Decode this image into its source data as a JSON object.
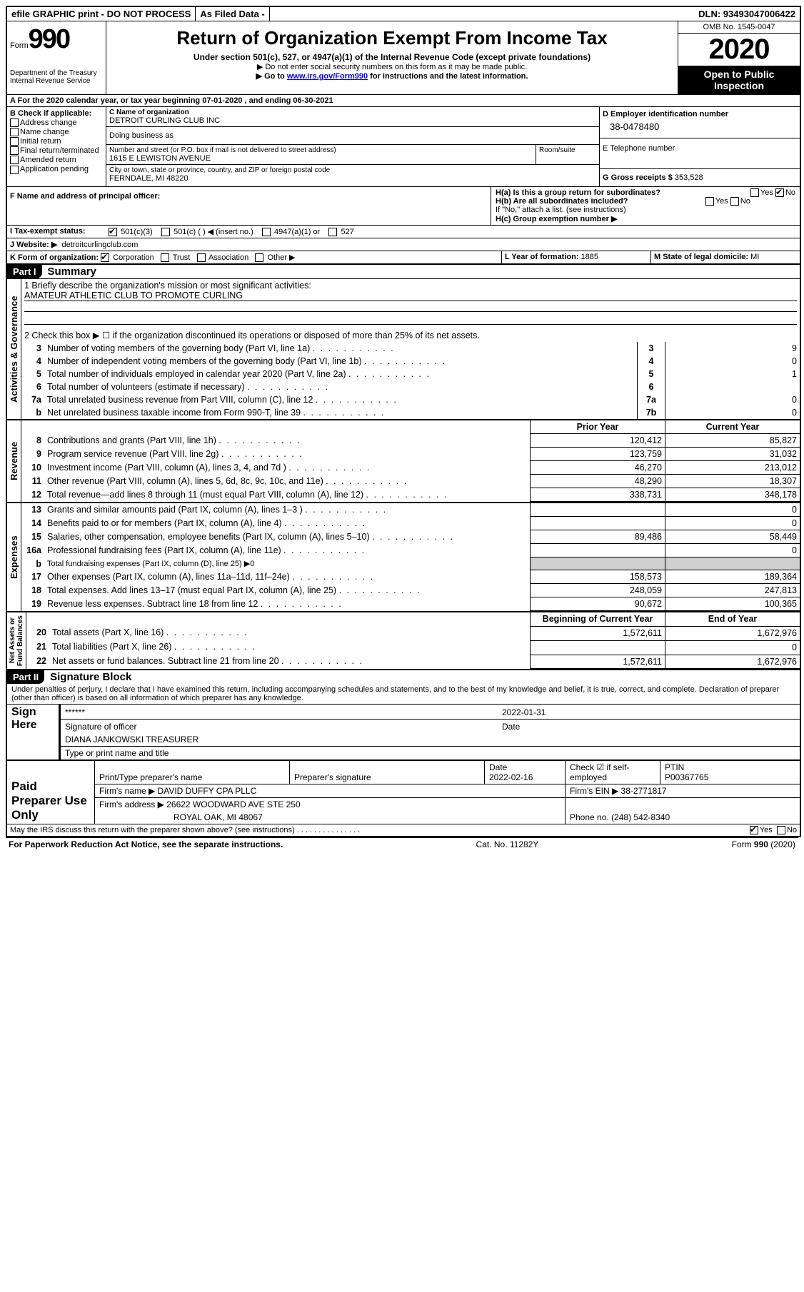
{
  "topbar": {
    "efile": "efile GRAPHIC print - DO NOT PROCESS",
    "asfiled": "As Filed Data -",
    "dln": "DLN: 93493047006422"
  },
  "header": {
    "form_prefix": "Form",
    "form_num": "990",
    "dept": "Department of the Treasury\nInternal Revenue Service",
    "title": "Return of Organization Exempt From Income Tax",
    "sub": "Under section 501(c), 527, or 4947(a)(1) of the Internal Revenue Code (except private foundations)",
    "note1": "▶ Do not enter social security numbers on this form as it may be made public.",
    "note2_pre": "▶ Go to ",
    "note2_link": "www.irs.gov/Form990",
    "note2_post": " for instructions and the latest information.",
    "omb": "OMB No. 1545-0047",
    "year": "2020",
    "open": "Open to Public Inspection"
  },
  "A": {
    "label": "A  For the 2020 calendar year, or tax year beginning ",
    "begin": "07-01-2020",
    "mid": " , and ending ",
    "end": "06-30-2021"
  },
  "B": {
    "label": "B Check if applicable:",
    "items": [
      "Address change",
      "Name change",
      "Initial return",
      "Final return/terminated",
      "Amended return",
      "Application pending"
    ]
  },
  "C": {
    "name_label": "C Name of organization",
    "name": "DETROIT CURLING CLUB INC",
    "dba_label": "Doing business as",
    "street_label": "Number and street (or P.O. box if mail is not delivered to street address)",
    "room_label": "Room/suite",
    "street": "1615 E LEWISTON AVENUE",
    "city_label": "City or town, state or province, country, and ZIP or foreign postal code",
    "city": "FERNDALE, MI  48220"
  },
  "D": {
    "label": "D Employer identification number",
    "value": "38-0478480"
  },
  "E": {
    "label": "E Telephone number"
  },
  "G": {
    "label": "G Gross receipts $ ",
    "value": "353,528"
  },
  "F": {
    "label": "F  Name and address of principal officer:"
  },
  "H": {
    "a": "H(a)  Is this a group return for subordinates?",
    "b": "H(b)  Are all subordinates included?",
    "bnote": "If \"No,\" attach a list. (see instructions)",
    "c": "H(c)  Group exemption number ▶",
    "yes": "Yes",
    "no": "No"
  },
  "I": {
    "label": "I  Tax-exempt status:",
    "opts": [
      "501(c)(3)",
      "501(c) (   ) ◀ (insert no.)",
      "4947(a)(1) or",
      "527"
    ]
  },
  "J": {
    "label": "J  Website: ▶",
    "value": "detroitcurlingclub.com"
  },
  "K": {
    "label": "K Form of organization:",
    "opts": [
      "Corporation",
      "Trust",
      "Association",
      "Other ▶"
    ]
  },
  "L": {
    "label": "L Year of formation: ",
    "value": "1885"
  },
  "M": {
    "label": "M State of legal domicile: ",
    "value": "MI"
  },
  "part1": {
    "tag": "Part I",
    "title": "Summary",
    "q1": "1 Briefly describe the organization's mission or most significant activities:",
    "q1v": "AMATEUR ATHLETIC CLUB TO PROMOTE CURLING",
    "q2": "2  Check this box ▶ ☐ if the organization discontinued its operations or disposed of more than 25% of its net assets.",
    "rows_top": [
      {
        "n": "3",
        "t": "Number of voting members of the governing body (Part VI, line 1a)",
        "ln": "3",
        "v": "9"
      },
      {
        "n": "4",
        "t": "Number of independent voting members of the governing body (Part VI, line 1b)",
        "ln": "4",
        "v": "0"
      },
      {
        "n": "5",
        "t": "Total number of individuals employed in calendar year 2020 (Part V, line 2a)",
        "ln": "5",
        "v": "1"
      },
      {
        "n": "6",
        "t": "Total number of volunteers (estimate if necessary)",
        "ln": "6",
        "v": ""
      },
      {
        "n": "7a",
        "t": "Total unrelated business revenue from Part VIII, column (C), line 12",
        "ln": "7a",
        "v": "0"
      },
      {
        "n": "b",
        "t": "Net unrelated business taxable income from Form 990-T, line 39",
        "ln": "7b",
        "v": "0"
      }
    ],
    "hdr_prior": "Prior Year",
    "hdr_curr": "Current Year",
    "revenue": [
      {
        "n": "8",
        "t": "Contributions and grants (Part VIII, line 1h)",
        "p": "120,412",
        "c": "85,827"
      },
      {
        "n": "9",
        "t": "Program service revenue (Part VIII, line 2g)",
        "p": "123,759",
        "c": "31,032"
      },
      {
        "n": "10",
        "t": "Investment income (Part VIII, column (A), lines 3, 4, and 7d )",
        "p": "46,270",
        "c": "213,012"
      },
      {
        "n": "11",
        "t": "Other revenue (Part VIII, column (A), lines 5, 6d, 8c, 9c, 10c, and 11e)",
        "p": "48,290",
        "c": "18,307"
      },
      {
        "n": "12",
        "t": "Total revenue—add lines 8 through 11 (must equal Part VIII, column (A), line 12)",
        "p": "338,731",
        "c": "348,178"
      }
    ],
    "expenses": [
      {
        "n": "13",
        "t": "Grants and similar amounts paid (Part IX, column (A), lines 1–3 )",
        "p": "",
        "c": "0"
      },
      {
        "n": "14",
        "t": "Benefits paid to or for members (Part IX, column (A), line 4)",
        "p": "",
        "c": "0"
      },
      {
        "n": "15",
        "t": "Salaries, other compensation, employee benefits (Part IX, column (A), lines 5–10)",
        "p": "89,486",
        "c": "58,449"
      },
      {
        "n": "16a",
        "t": "Professional fundraising fees (Part IX, column (A), line 11e)",
        "p": "",
        "c": "0"
      },
      {
        "n": "b",
        "t": "Total fundraising expenses (Part IX, column (D), line 25) ▶0",
        "p": "shade",
        "c": "shade",
        "small": true
      },
      {
        "n": "17",
        "t": "Other expenses (Part IX, column (A), lines 11a–11d, 11f–24e)",
        "p": "158,573",
        "c": "189,364"
      },
      {
        "n": "18",
        "t": "Total expenses. Add lines 13–17 (must equal Part IX, column (A), line 25)",
        "p": "248,059",
        "c": "247,813"
      },
      {
        "n": "19",
        "t": "Revenue less expenses. Subtract line 18 from line 12",
        "p": "90,672",
        "c": "100,365"
      }
    ],
    "hdr_begin": "Beginning of Current Year",
    "hdr_end": "End of Year",
    "net": [
      {
        "n": "20",
        "t": "Total assets (Part X, line 16)",
        "p": "1,572,611",
        "c": "1,672,976"
      },
      {
        "n": "21",
        "t": "Total liabilities (Part X, line 26)",
        "p": "",
        "c": "0"
      },
      {
        "n": "22",
        "t": "Net assets or fund balances. Subtract line 21 from line 20",
        "p": "1,572,611",
        "c": "1,672,976"
      }
    ],
    "vlabels": {
      "gov": "Activities & Governance",
      "rev": "Revenue",
      "exp": "Expenses",
      "net": "Net Assets or\nFund Balances"
    }
  },
  "part2": {
    "tag": "Part II",
    "title": "Signature Block",
    "decl": "Under penalties of perjury, I declare that I have examined this return, including accompanying schedules and statements, and to the best of my knowledge and belief, it is true, correct, and complete. Declaration of preparer (other than officer) is based on all information of which preparer has any knowledge.",
    "sign": "Sign Here",
    "stars": "******",
    "sig_officer": "Signature of officer",
    "date_lbl": "Date",
    "date1": "2022-01-31",
    "name_title": "DIANA JANKOWSKI  TREASURER",
    "type_lbl": "Type or print name and title",
    "paid": "Paid Preparer Use Only",
    "preparer_name_lbl": "Print/Type preparer's name",
    "preparer_sig_lbl": "Preparer's signature",
    "date2": "2022-02-16",
    "check_self": "Check ☑ if self-employed",
    "ptin_lbl": "PTIN",
    "ptin": "P00367765",
    "firm_name_lbl": "Firm's name  ▶",
    "firm_name": "DAVID DUFFY CPA PLLC",
    "firm_ein_lbl": "Firm's EIN ▶",
    "firm_ein": "38-2771817",
    "firm_addr_lbl": "Firm's address ▶",
    "firm_addr1": "26622 WOODWARD AVE STE 250",
    "firm_addr2": "ROYAL OAK, MI  48067",
    "phone_lbl": "Phone no. ",
    "phone": "(248) 542-8340",
    "discuss": "May the IRS discuss this return with the preparer shown above? (see instructions)"
  },
  "footer": {
    "left": "For Paperwork Reduction Act Notice, see the separate instructions.",
    "mid": "Cat. No. 11282Y",
    "right": "Form 990 (2020)"
  }
}
